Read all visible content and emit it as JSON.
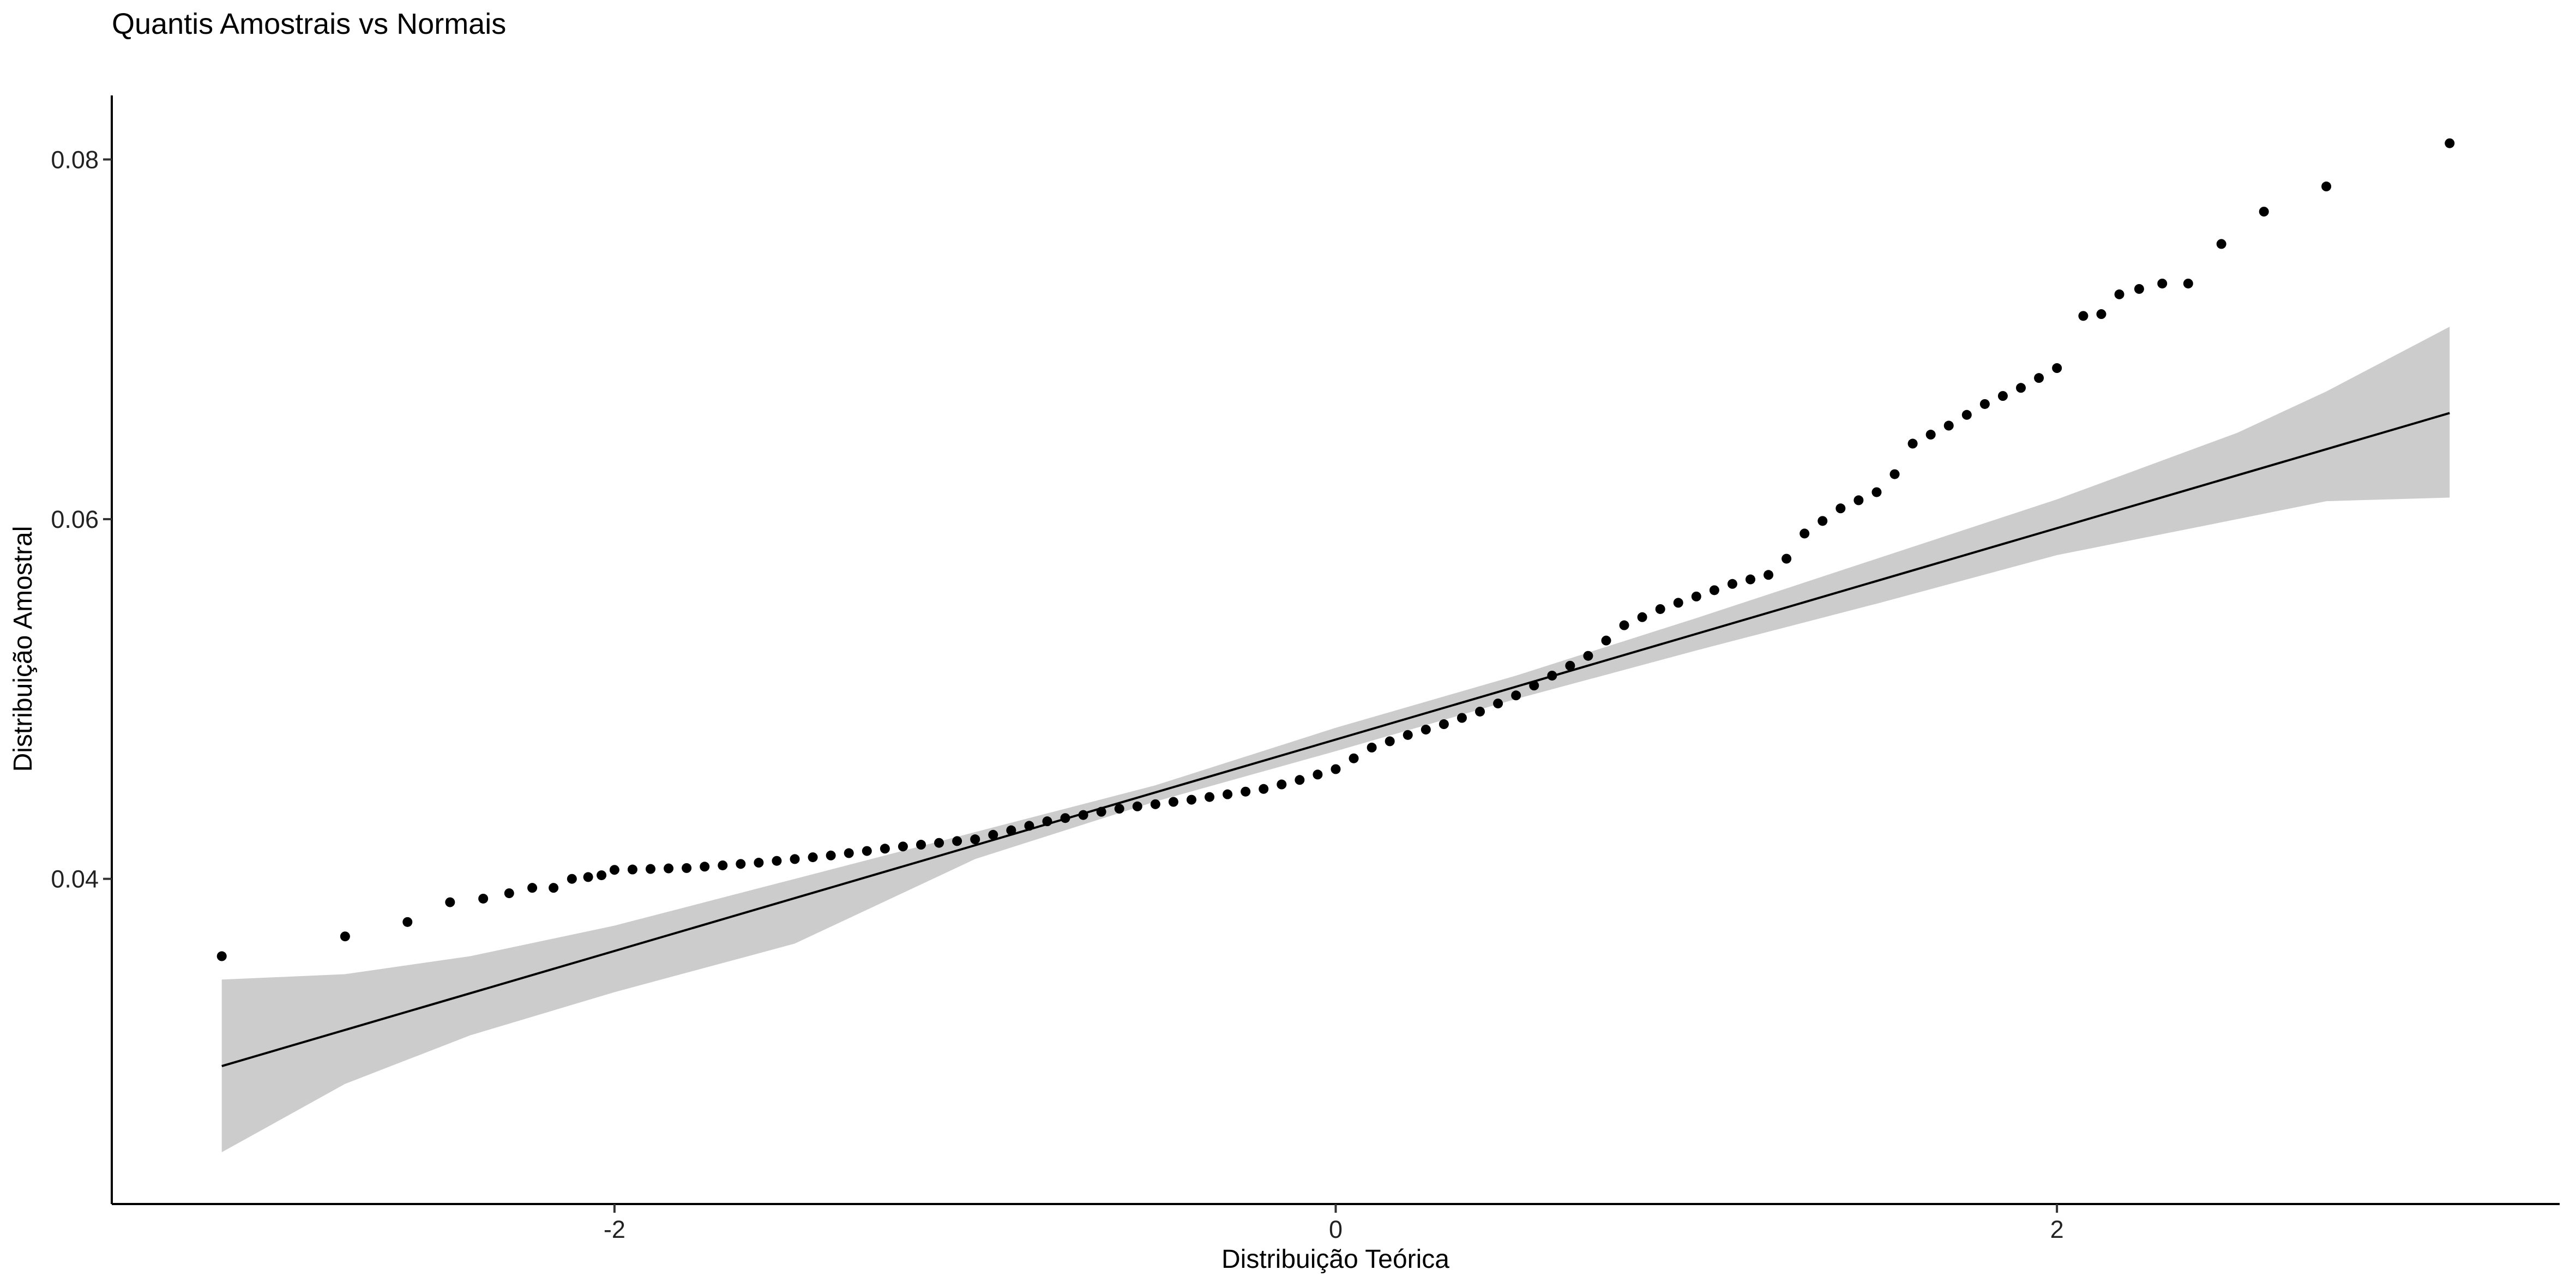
{
  "chart_data": {
    "type": "scatter",
    "title": "Quantis Amostrais vs Normais",
    "x_label": "Distribuição Teórica",
    "y_label": "Distribuição Amostral",
    "color": "#000000",
    "x": [
      -3.089,
      -2.747,
      -2.574,
      -2.456,
      -2.364,
      -2.292,
      -2.228,
      -2.169,
      -2.118,
      -2.073,
      -2.036,
      -2.0,
      -1.95,
      -1.9,
      -1.85,
      -1.8,
      -1.75,
      -1.7,
      -1.65,
      -1.6,
      -1.55,
      -1.5,
      -1.45,
      -1.4,
      -1.35,
      -1.3,
      -1.25,
      -1.2,
      -1.15,
      -1.1,
      -1.05,
      -1.0,
      -0.95,
      -0.9,
      -0.85,
      -0.8,
      -0.75,
      -0.7,
      -0.65,
      -0.6,
      -0.55,
      -0.5,
      -0.45,
      -0.4,
      -0.35,
      -0.3,
      -0.25,
      -0.2,
      -0.15,
      -0.1,
      -0.05,
      0,
      0.05,
      0.1,
      0.15,
      0.2,
      0.25,
      0.3,
      0.35,
      0.4,
      0.45,
      0.5,
      0.55,
      0.6,
      0.65,
      0.7,
      0.75,
      0.8,
      0.85,
      0.9,
      0.95,
      1.0,
      1.05,
      1.1,
      1.15,
      1.2,
      1.25,
      1.3,
      1.35,
      1.4,
      1.45,
      1.5,
      1.55,
      1.6,
      1.65,
      1.7,
      1.75,
      1.8,
      1.85,
      1.9,
      1.95,
      2.0,
      2.073,
      2.123,
      2.173,
      2.228,
      2.292,
      2.364,
      2.456,
      2.574,
      2.747,
      3.089
    ],
    "values": [
      0.0357,
      0.0368,
      0.0376,
      0.0387,
      0.0389,
      0.0392,
      0.0395,
      0.0395,
      0.04,
      0.0401,
      0.0402,
      0.0405,
      0.04052,
      0.04055,
      0.04058,
      0.0406,
      0.04068,
      0.04075,
      0.04083,
      0.0409,
      0.041,
      0.0411,
      0.0412,
      0.0413,
      0.04143,
      0.04155,
      0.04168,
      0.0418,
      0.0419,
      0.042,
      0.0421,
      0.0422,
      0.04245,
      0.0427,
      0.04295,
      0.0432,
      0.04338,
      0.04355,
      0.04373,
      0.0439,
      0.04403,
      0.04415,
      0.04428,
      0.0444,
      0.04455,
      0.0447,
      0.04485,
      0.045,
      0.04525,
      0.0455,
      0.0458,
      0.0461,
      0.0467,
      0.0473,
      0.04765,
      0.048,
      0.0483,
      0.0486,
      0.04895,
      0.0493,
      0.04975,
      0.0502,
      0.05075,
      0.0513,
      0.05185,
      0.0524,
      0.05325,
      0.0541,
      0.05455,
      0.055,
      0.05535,
      0.0557,
      0.05605,
      0.0564,
      0.05665,
      0.0569,
      0.0578,
      0.0592,
      0.0599,
      0.0606,
      0.06105,
      0.0615,
      0.0625,
      0.0642,
      0.0647,
      0.0652,
      0.0658,
      0.0664,
      0.06685,
      0.0673,
      0.06785,
      0.0684,
      0.0713,
      0.0714,
      0.0725,
      0.0728,
      0.0731,
      0.0731,
      0.0753,
      0.0771,
      0.0785,
      0.0809
    ],
    "fit": {
      "color": "#000000",
      "x": [
        -3.089,
        3.089
      ],
      "values": [
        0.02959,
        0.0659
      ]
    },
    "band": {
      "color": "#cccccc",
      "x": [
        -3.089,
        -2.747,
        -2.4,
        -2.0,
        -1.5,
        -1.0,
        -0.5,
        0,
        0.5,
        1.0,
        1.5,
        2.0,
        2.5,
        2.747,
        3.089
      ],
      "lower": [
        0.0248,
        0.0286,
        0.0313,
        0.0337,
        0.0364,
        0.0411,
        0.0443,
        0.0471,
        0.05,
        0.0527,
        0.0553,
        0.058,
        0.06,
        0.061,
        0.0612
      ],
      "upper": [
        0.0344,
        0.0347,
        0.0357,
        0.0374,
        0.04,
        0.0426,
        0.0452,
        0.0484,
        0.0513,
        0.0545,
        0.0578,
        0.0611,
        0.0648,
        0.0671,
        0.0707
      ]
    },
    "xlim": [
      -3.394,
      3.394
    ],
    "ylim": [
      0.02192,
      0.08356
    ],
    "xticks": [
      -2,
      0,
      2
    ],
    "yticks": [
      0.04,
      0.06,
      0.08
    ],
    "grid": false
  }
}
